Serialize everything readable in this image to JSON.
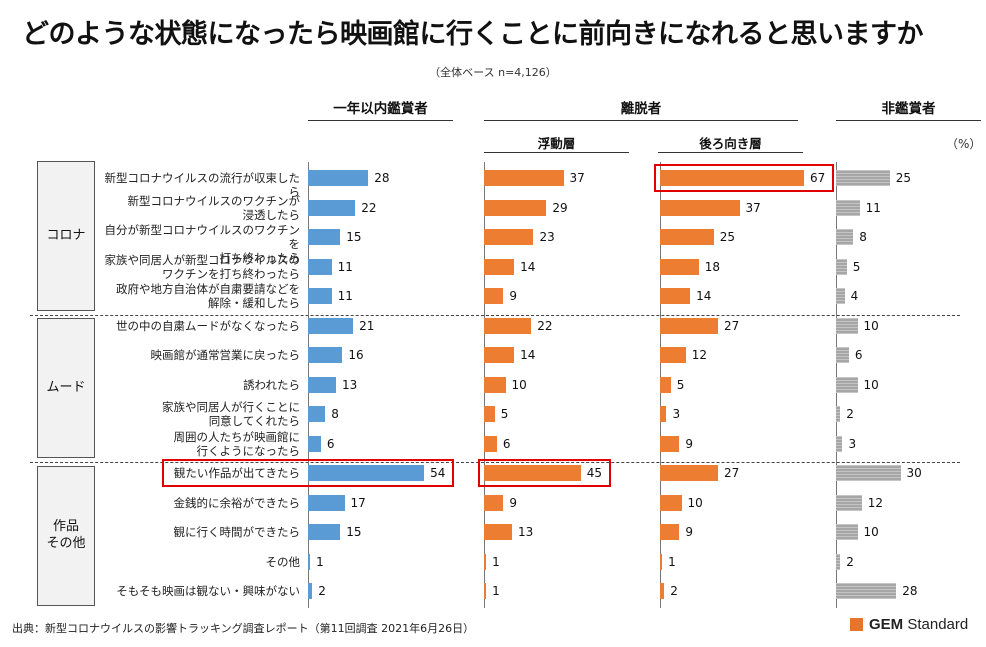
{
  "title": "どのような状態になったら映画館に行くことに前向きになれると思いますか",
  "subtitle": "（全体ベース n=4,126）",
  "unit": "（%）",
  "headers": {
    "col1": "一年以内鑑賞者",
    "group": "離脱者",
    "col2": "浮動層",
    "col3": "後ろ向き層",
    "col4": "非鑑賞者"
  },
  "groups": [
    "コロナ",
    "ムード",
    "作品\nその他"
  ],
  "source": "出典：新型コロナウイルスの影響トラッキング調査レポート（第11回調査 2021年6月26日）",
  "logo": {
    "bold": "GEM",
    "rest": " Standard"
  },
  "colors": {
    "col1": "#5b9bd5",
    "col2": "#ed7d31",
    "col3": "#ed7d31",
    "col4": "#a6a6a6",
    "highlight": "#e00000"
  },
  "chart_data": {
    "type": "bar",
    "orientation": "horizontal",
    "categories": [
      "新型コロナウイルスの流行が収束したら",
      "新型コロナウイルスのワクチンが\n浸透したら",
      "自分が新型コロナウイルスのワクチンを\n打ち終わったら",
      "家族や同居人が新型コロナウイルスの\nワクチンを打ち終わったら",
      "政府や地方自治体が自粛要請などを\n解除・緩和したら",
      "世の中の自粛ムードがなくなったら",
      "映画館が通常営業に戻ったら",
      "誘われたら",
      "家族や同居人が行くことに\n同意してくれたら",
      "周囲の人たちが映画館に\n行くようになったら",
      "観たい作品が出てきたら",
      "金銭的に余裕ができたら",
      "観に行く時間ができたら",
      "その他",
      "そもそも映画は観ない・興味がない"
    ],
    "series": [
      {
        "name": "一年以内鑑賞者",
        "values": [
          28,
          22,
          15,
          11,
          11,
          21,
          16,
          13,
          8,
          6,
          54,
          17,
          15,
          1,
          2
        ]
      },
      {
        "name": "浮動層",
        "values": [
          37,
          29,
          23,
          14,
          9,
          22,
          14,
          10,
          5,
          6,
          45,
          9,
          13,
          1,
          1
        ]
      },
      {
        "name": "後ろ向き層",
        "values": [
          67,
          37,
          25,
          18,
          14,
          27,
          12,
          5,
          3,
          9,
          27,
          10,
          9,
          1,
          2
        ]
      },
      {
        "name": "非鑑賞者",
        "values": [
          25,
          11,
          8,
          5,
          4,
          10,
          6,
          10,
          2,
          3,
          30,
          12,
          10,
          2,
          28
        ]
      }
    ],
    "highlighted": [
      {
        "series": "一年以内鑑賞者",
        "category": "観たい作品が出てきたら"
      },
      {
        "series": "浮動層",
        "category": "観たい作品が出てきたら"
      },
      {
        "series": "後ろ向き層",
        "category": "新型コロナウイルスの流行が収束したら"
      }
    ],
    "xlim": [
      0,
      80
    ],
    "grid": false,
    "legend": "none"
  }
}
